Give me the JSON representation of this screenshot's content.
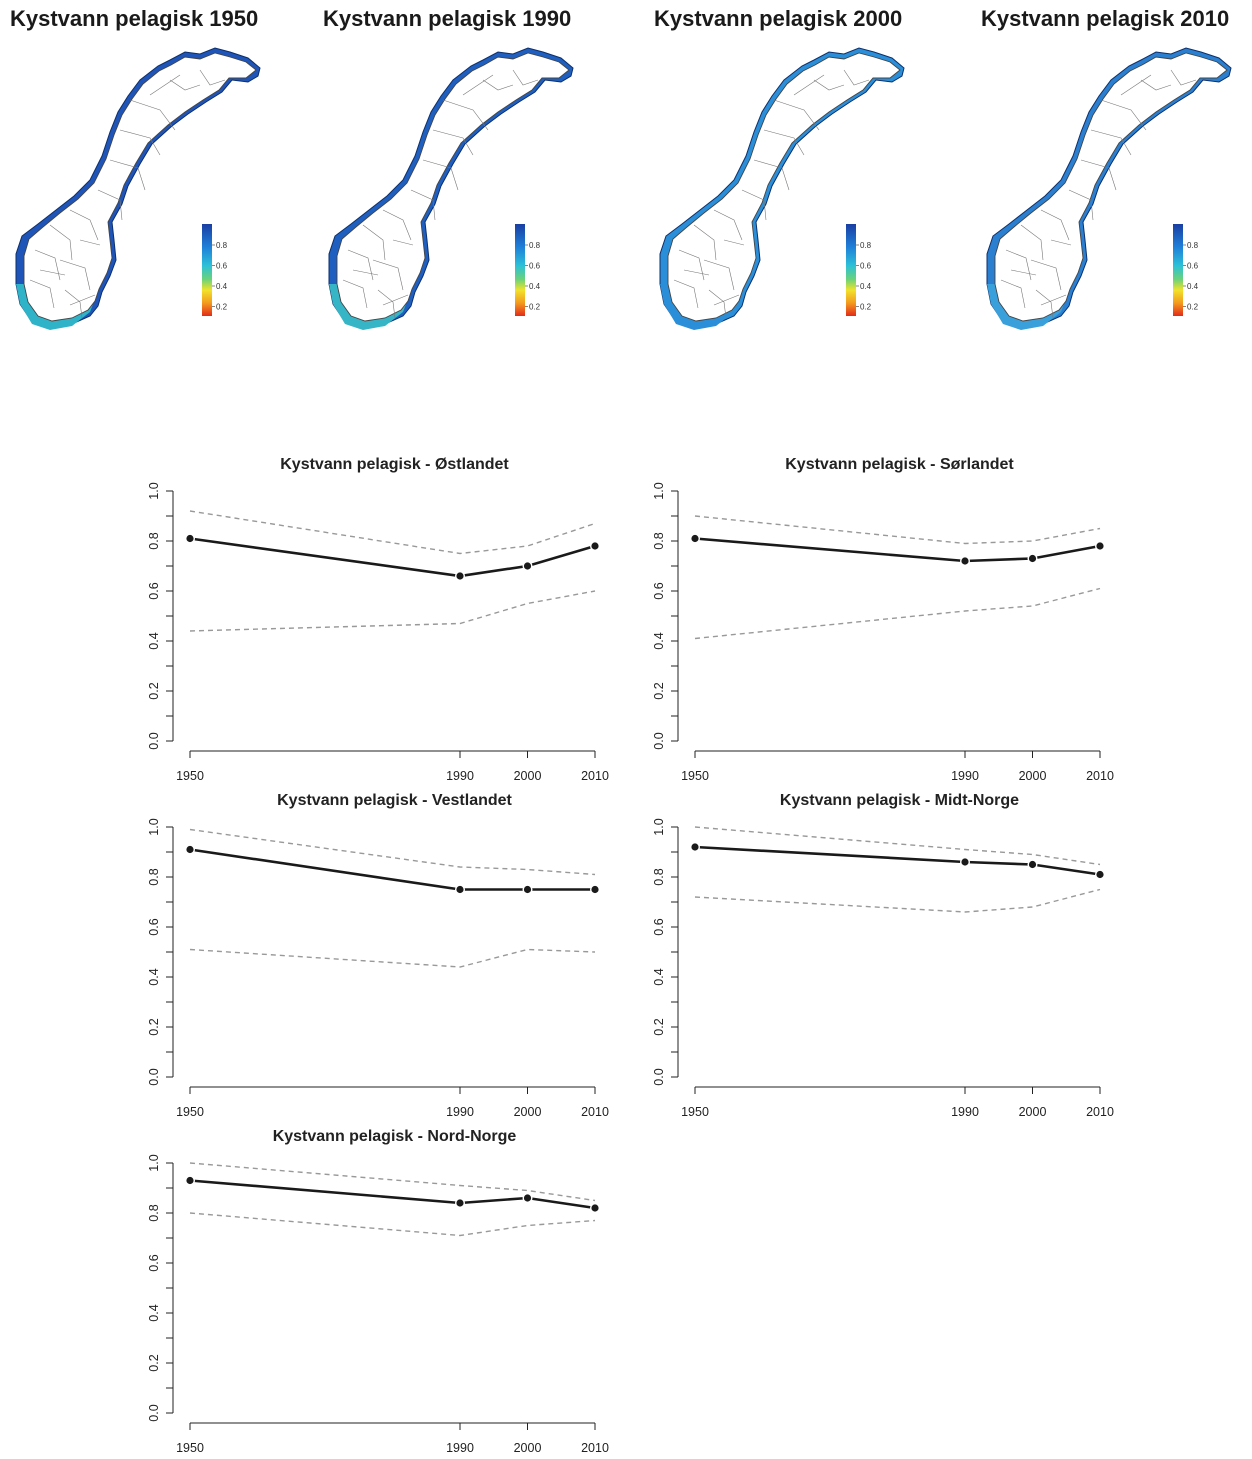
{
  "maps": [
    {
      "title": "Kystvann pelagisk 1950",
      "legend_ticks": [
        "0.8",
        "0.6",
        "0.4",
        "0.2"
      ],
      "coast_color": "#1f55b8",
      "south_color": "#2fb3c8"
    },
    {
      "title": "Kystvann pelagisk 1990",
      "legend_ticks": [
        "0.8",
        "0.6",
        "0.4",
        "0.2"
      ],
      "coast_color": "#1f5fc0",
      "south_color": "#35b5c6"
    },
    {
      "title": "Kystvann pelagisk 2000",
      "legend_ticks": [
        "0.8",
        "0.6",
        "0.4",
        "0.2"
      ],
      "coast_color": "#2a8fd8",
      "south_color": "#2a8fd8"
    },
    {
      "title": "Kystvann pelagisk 2010",
      "legend_ticks": [
        "0.8",
        "0.6",
        "0.4",
        "0.2"
      ],
      "coast_color": "#2a7fd0",
      "south_color": "#3aa0dc"
    }
  ],
  "colors": {
    "line": "#1a1a1a",
    "bounds": "#999999",
    "axis": "#222222"
  },
  "chart_data": [
    {
      "type": "line",
      "title": "Kystvann pelagisk - Østlandet",
      "x": [
        1950,
        1990,
        2000,
        2010
      ],
      "xticks": [
        "1950",
        "1990",
        "2000",
        "2010"
      ],
      "ylim": [
        0,
        1
      ],
      "yticks": [
        "0.0",
        "0.2",
        "0.4",
        "0.6",
        "0.8",
        "1.0"
      ],
      "series": [
        {
          "values": [
            0.81,
            0.66,
            0.7,
            0.78
          ]
        }
      ],
      "upper": [
        0.92,
        0.75,
        0.78,
        0.87
      ],
      "lower": [
        0.44,
        0.47,
        0.55,
        0.6
      ]
    },
    {
      "type": "line",
      "title": "Kystvann pelagisk - Sørlandet",
      "x": [
        1950,
        1990,
        2000,
        2010
      ],
      "xticks": [
        "1950",
        "1990",
        "2000",
        "2010"
      ],
      "ylim": [
        0,
        1
      ],
      "yticks": [
        "0.0",
        "0.2",
        "0.4",
        "0.6",
        "0.8",
        "1.0"
      ],
      "series": [
        {
          "values": [
            0.81,
            0.72,
            0.73,
            0.78
          ]
        }
      ],
      "upper": [
        0.9,
        0.79,
        0.8,
        0.85
      ],
      "lower": [
        0.41,
        0.52,
        0.54,
        0.61
      ]
    },
    {
      "type": "line",
      "title": "Kystvann pelagisk - Vestlandet",
      "x": [
        1950,
        1990,
        2000,
        2010
      ],
      "xticks": [
        "1950",
        "1990",
        "2000",
        "2010"
      ],
      "ylim": [
        0,
        1
      ],
      "yticks": [
        "0.0",
        "0.2",
        "0.4",
        "0.6",
        "0.8",
        "1.0"
      ],
      "series": [
        {
          "values": [
            0.91,
            0.75,
            0.75,
            0.75
          ]
        }
      ],
      "upper": [
        0.99,
        0.84,
        0.83,
        0.81
      ],
      "lower": [
        0.51,
        0.44,
        0.51,
        0.5
      ]
    },
    {
      "type": "line",
      "title": "Kystvann pelagisk - Midt-Norge",
      "x": [
        1950,
        1990,
        2000,
        2010
      ],
      "xticks": [
        "1950",
        "1990",
        "2000",
        "2010"
      ],
      "ylim": [
        0,
        1
      ],
      "yticks": [
        "0.0",
        "0.2",
        "0.4",
        "0.6",
        "0.8",
        "1.0"
      ],
      "series": [
        {
          "values": [
            0.92,
            0.86,
            0.85,
            0.81
          ]
        }
      ],
      "upper": [
        1.0,
        0.91,
        0.89,
        0.85
      ],
      "lower": [
        0.72,
        0.66,
        0.68,
        0.75
      ]
    },
    {
      "type": "line",
      "title": "Kystvann pelagisk - Nord-Norge",
      "x": [
        1950,
        1990,
        2000,
        2010
      ],
      "xticks": [
        "1950",
        "1990",
        "2000",
        "2010"
      ],
      "ylim": [
        0,
        1
      ],
      "yticks": [
        "0.0",
        "0.2",
        "0.4",
        "0.6",
        "0.8",
        "1.0"
      ],
      "series": [
        {
          "values": [
            0.93,
            0.84,
            0.86,
            0.82
          ]
        }
      ],
      "upper": [
        1.0,
        0.91,
        0.89,
        0.85
      ],
      "lower": [
        0.8,
        0.71,
        0.75,
        0.77
      ]
    }
  ]
}
